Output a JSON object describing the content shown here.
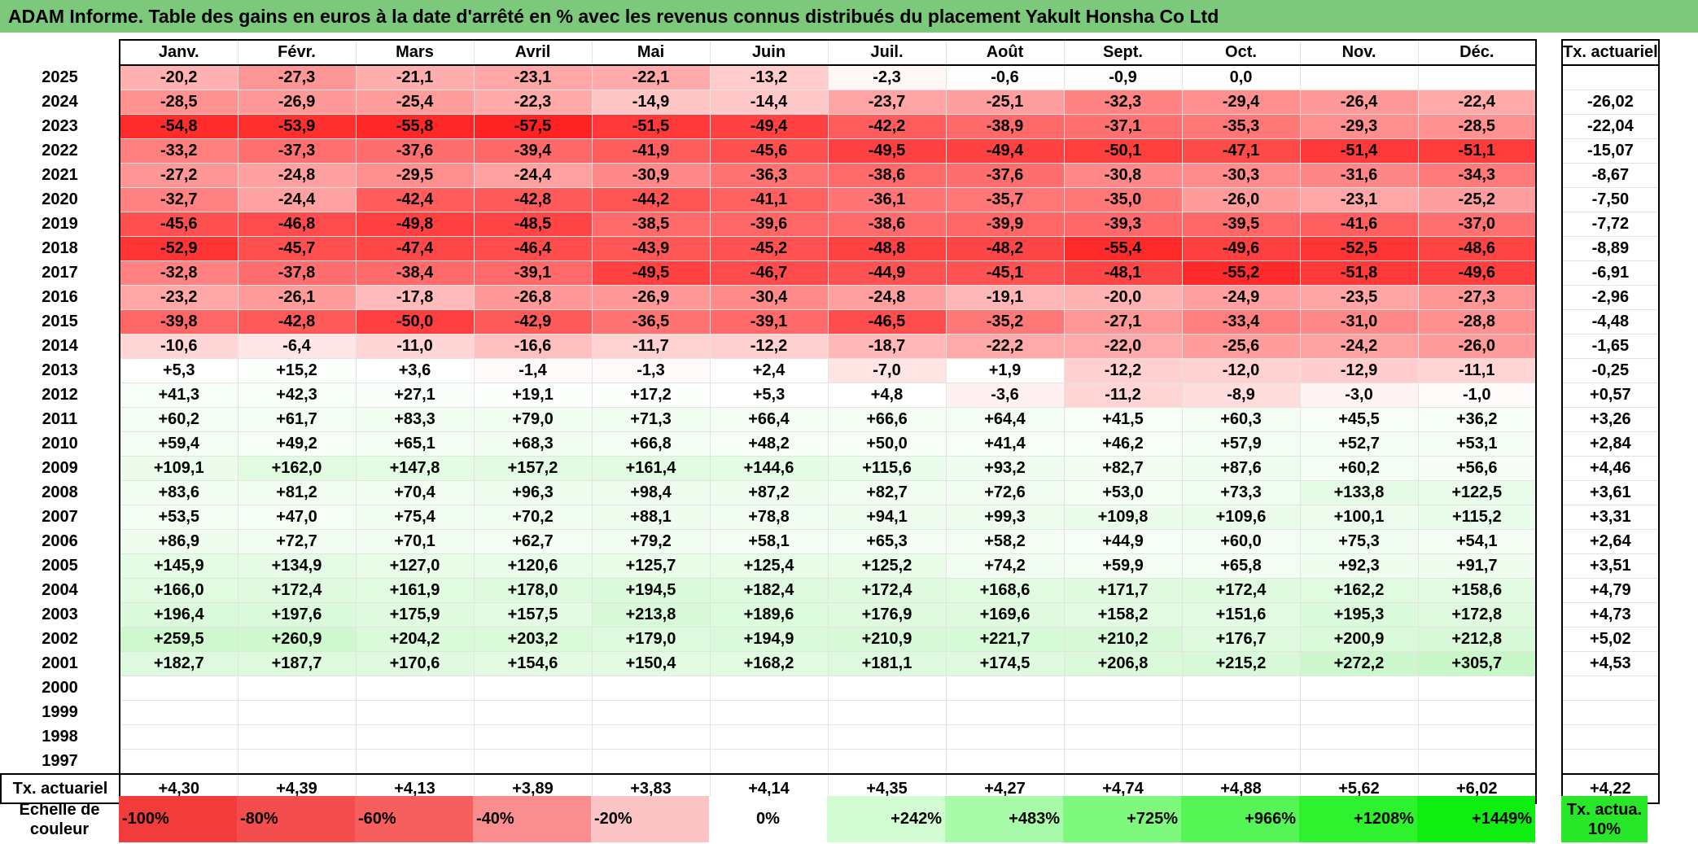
{
  "title": "ADAM Informe. Table des gains en euros à la date d'arrêté en % avec les revenus connus distribués du placement Yakult Honsha Co Ltd",
  "months": [
    "Janv.",
    "Févr.",
    "Mars",
    "Avril",
    "Mai",
    "Juin",
    "Juil.",
    "Août",
    "Sept.",
    "Oct.",
    "Nov.",
    "Déc."
  ],
  "tx_header": "Tx. actuariel",
  "rows": [
    {
      "year": "2025",
      "values": [
        "-20,2",
        "-27,3",
        "-21,1",
        "-23,1",
        "-22,1",
        "-13,2",
        "-2,3",
        "-0,6",
        "-0,9",
        "0,0",
        "",
        ""
      ],
      "tx": ""
    },
    {
      "year": "2024",
      "values": [
        "-28,5",
        "-26,9",
        "-25,4",
        "-22,3",
        "-14,9",
        "-14,4",
        "-23,7",
        "-25,1",
        "-32,3",
        "-29,4",
        "-26,4",
        "-22,4"
      ],
      "tx": "-26,02"
    },
    {
      "year": "2023",
      "values": [
        "-54,8",
        "-53,9",
        "-55,8",
        "-57,5",
        "-51,5",
        "-49,4",
        "-42,2",
        "-38,9",
        "-37,1",
        "-35,3",
        "-29,3",
        "-28,5"
      ],
      "tx": "-22,04"
    },
    {
      "year": "2022",
      "values": [
        "-33,2",
        "-37,3",
        "-37,6",
        "-39,4",
        "-41,9",
        "-45,6",
        "-49,5",
        "-49,4",
        "-50,1",
        "-47,1",
        "-51,4",
        "-51,1"
      ],
      "tx": "-15,07"
    },
    {
      "year": "2021",
      "values": [
        "-27,2",
        "-24,8",
        "-29,5",
        "-24,4",
        "-30,9",
        "-36,3",
        "-38,6",
        "-37,6",
        "-30,8",
        "-30,3",
        "-31,6",
        "-34,3"
      ],
      "tx": "-8,67"
    },
    {
      "year": "2020",
      "values": [
        "-32,7",
        "-24,4",
        "-42,4",
        "-42,8",
        "-44,2",
        "-41,1",
        "-36,1",
        "-35,7",
        "-35,0",
        "-26,0",
        "-23,1",
        "-25,2"
      ],
      "tx": "-7,50"
    },
    {
      "year": "2019",
      "values": [
        "-45,6",
        "-46,8",
        "-49,8",
        "-48,5",
        "-38,5",
        "-39,6",
        "-38,6",
        "-39,9",
        "-39,3",
        "-39,5",
        "-41,6",
        "-37,0"
      ],
      "tx": "-7,72"
    },
    {
      "year": "2018",
      "values": [
        "-52,9",
        "-45,7",
        "-47,4",
        "-46,4",
        "-43,9",
        "-45,2",
        "-48,8",
        "-48,2",
        "-55,4",
        "-49,6",
        "-52,5",
        "-48,6"
      ],
      "tx": "-8,89"
    },
    {
      "year": "2017",
      "values": [
        "-32,8",
        "-37,8",
        "-38,4",
        "-39,1",
        "-49,5",
        "-46,7",
        "-44,9",
        "-45,1",
        "-48,1",
        "-55,2",
        "-51,8",
        "-49,6"
      ],
      "tx": "-6,91"
    },
    {
      "year": "2016",
      "values": [
        "-23,2",
        "-26,1",
        "-17,8",
        "-26,8",
        "-26,9",
        "-30,4",
        "-24,8",
        "-19,1",
        "-20,0",
        "-24,9",
        "-23,5",
        "-27,3"
      ],
      "tx": "-2,96"
    },
    {
      "year": "2015",
      "values": [
        "-39,8",
        "-42,8",
        "-50,0",
        "-42,9",
        "-36,5",
        "-39,1",
        "-46,5",
        "-35,2",
        "-27,1",
        "-33,4",
        "-31,0",
        "-28,8"
      ],
      "tx": "-4,48"
    },
    {
      "year": "2014",
      "values": [
        "-10,6",
        "-6,4",
        "-11,0",
        "-16,6",
        "-11,7",
        "-12,2",
        "-18,7",
        "-22,2",
        "-22,0",
        "-25,6",
        "-24,2",
        "-26,0"
      ],
      "tx": "-1,65"
    },
    {
      "year": "2013",
      "values": [
        "+5,3",
        "+15,2",
        "+3,6",
        "-1,4",
        "-1,3",
        "+2,4",
        "-7,0",
        "+1,9",
        "-12,2",
        "-12,0",
        "-12,9",
        "-11,1"
      ],
      "tx": "-0,25"
    },
    {
      "year": "2012",
      "values": [
        "+41,3",
        "+42,3",
        "+27,1",
        "+19,1",
        "+17,2",
        "+5,3",
        "+4,8",
        "-3,6",
        "-11,2",
        "-8,9",
        "-3,0",
        "-1,0"
      ],
      "tx": "+0,57"
    },
    {
      "year": "2011",
      "values": [
        "+60,2",
        "+61,7",
        "+83,3",
        "+79,0",
        "+71,3",
        "+66,4",
        "+66,6",
        "+64,4",
        "+41,5",
        "+60,3",
        "+45,5",
        "+36,2"
      ],
      "tx": "+3,26"
    },
    {
      "year": "2010",
      "values": [
        "+59,4",
        "+49,2",
        "+65,1",
        "+68,3",
        "+66,8",
        "+48,2",
        "+50,0",
        "+41,4",
        "+46,2",
        "+57,9",
        "+52,7",
        "+53,1"
      ],
      "tx": "+2,84"
    },
    {
      "year": "2009",
      "values": [
        "+109,1",
        "+162,0",
        "+147,8",
        "+157,2",
        "+161,4",
        "+144,6",
        "+115,6",
        "+93,2",
        "+82,7",
        "+87,6",
        "+60,2",
        "+56,6"
      ],
      "tx": "+4,46"
    },
    {
      "year": "2008",
      "values": [
        "+83,6",
        "+81,2",
        "+70,4",
        "+96,3",
        "+98,4",
        "+87,2",
        "+82,7",
        "+72,6",
        "+53,0",
        "+73,3",
        "+133,8",
        "+122,5"
      ],
      "tx": "+3,61"
    },
    {
      "year": "2007",
      "values": [
        "+53,5",
        "+47,0",
        "+75,4",
        "+70,2",
        "+88,1",
        "+78,8",
        "+94,1",
        "+99,3",
        "+109,8",
        "+109,6",
        "+100,1",
        "+115,2"
      ],
      "tx": "+3,31"
    },
    {
      "year": "2006",
      "values": [
        "+86,9",
        "+72,7",
        "+70,1",
        "+62,7",
        "+79,2",
        "+58,1",
        "+65,3",
        "+58,2",
        "+44,9",
        "+60,0",
        "+75,3",
        "+54,1"
      ],
      "tx": "+2,64"
    },
    {
      "year": "2005",
      "values": [
        "+145,9",
        "+134,9",
        "+127,0",
        "+120,6",
        "+125,7",
        "+125,4",
        "+125,2",
        "+74,2",
        "+59,9",
        "+65,8",
        "+92,3",
        "+91,7"
      ],
      "tx": "+3,51"
    },
    {
      "year": "2004",
      "values": [
        "+166,0",
        "+172,4",
        "+161,9",
        "+178,0",
        "+194,5",
        "+182,4",
        "+172,4",
        "+168,6",
        "+171,7",
        "+172,4",
        "+162,2",
        "+158,6"
      ],
      "tx": "+4,79"
    },
    {
      "year": "2003",
      "values": [
        "+196,4",
        "+197,6",
        "+175,9",
        "+157,5",
        "+213,8",
        "+189,6",
        "+176,9",
        "+169,6",
        "+158,2",
        "+151,6",
        "+195,3",
        "+172,8"
      ],
      "tx": "+4,73"
    },
    {
      "year": "2002",
      "values": [
        "+259,5",
        "+260,9",
        "+204,2",
        "+203,2",
        "+179,0",
        "+194,9",
        "+210,9",
        "+221,7",
        "+210,2",
        "+176,7",
        "+200,9",
        "+212,8"
      ],
      "tx": "+5,02"
    },
    {
      "year": "2001",
      "values": [
        "+182,7",
        "+187,7",
        "+170,6",
        "+154,6",
        "+150,4",
        "+168,2",
        "+181,1",
        "+174,5",
        "+206,8",
        "+215,2",
        "+272,2",
        "+305,7"
      ],
      "tx": "+4,53"
    },
    {
      "year": "2000",
      "values": [
        "",
        "",
        "",
        "",
        "",
        "",
        "",
        "",
        "",
        "",
        "",
        ""
      ],
      "tx": ""
    },
    {
      "year": "1999",
      "values": [
        "",
        "",
        "",
        "",
        "",
        "",
        "",
        "",
        "",
        "",
        "",
        ""
      ],
      "tx": ""
    },
    {
      "year": "1998",
      "values": [
        "",
        "",
        "",
        "",
        "",
        "",
        "",
        "",
        "",
        "",
        "",
        ""
      ],
      "tx": ""
    },
    {
      "year": "1997",
      "values": [
        "",
        "",
        "",
        "",
        "",
        "",
        "",
        "",
        "",
        "",
        "",
        ""
      ],
      "tx": ""
    }
  ],
  "footer": {
    "label": "Tx. actuariel",
    "values": [
      "+4,30",
      "+4,39",
      "+4,13",
      "+3,89",
      "+3,83",
      "+4,14",
      "+4,35",
      "+4,27",
      "+4,74",
      "+4,88",
      "+5,62",
      "+6,02"
    ],
    "tx": "+4,22"
  },
  "scale": {
    "label": "Echelle de couleur",
    "items": [
      {
        "text": "-100%",
        "color": "#f23c3c"
      },
      {
        "text": "-80%",
        "color": "#f44d4d"
      },
      {
        "text": "-60%",
        "color": "#f75f5f"
      },
      {
        "text": "-40%",
        "color": "#fa8e8e"
      },
      {
        "text": "-20%",
        "color": "#fcc4c4"
      },
      {
        "text": "0%",
        "color": "#ffffff"
      },
      {
        "text": "+242%",
        "color": "#d2fcd2"
      },
      {
        "text": "+483%",
        "color": "#a8fba8"
      },
      {
        "text": "+725%",
        "color": "#7ef97e"
      },
      {
        "text": "+966%",
        "color": "#56f556"
      },
      {
        "text": "+1208%",
        "color": "#2ef22e"
      },
      {
        "text": "+1449%",
        "color": "#10ed10"
      }
    ],
    "key_label": "Tx. actua. 10%",
    "key_color": "#28e628"
  },
  "colors": {
    "title_bg": "#7dc97b",
    "neg_max": "#ff2020",
    "pos_max": "#c8f7c8"
  }
}
